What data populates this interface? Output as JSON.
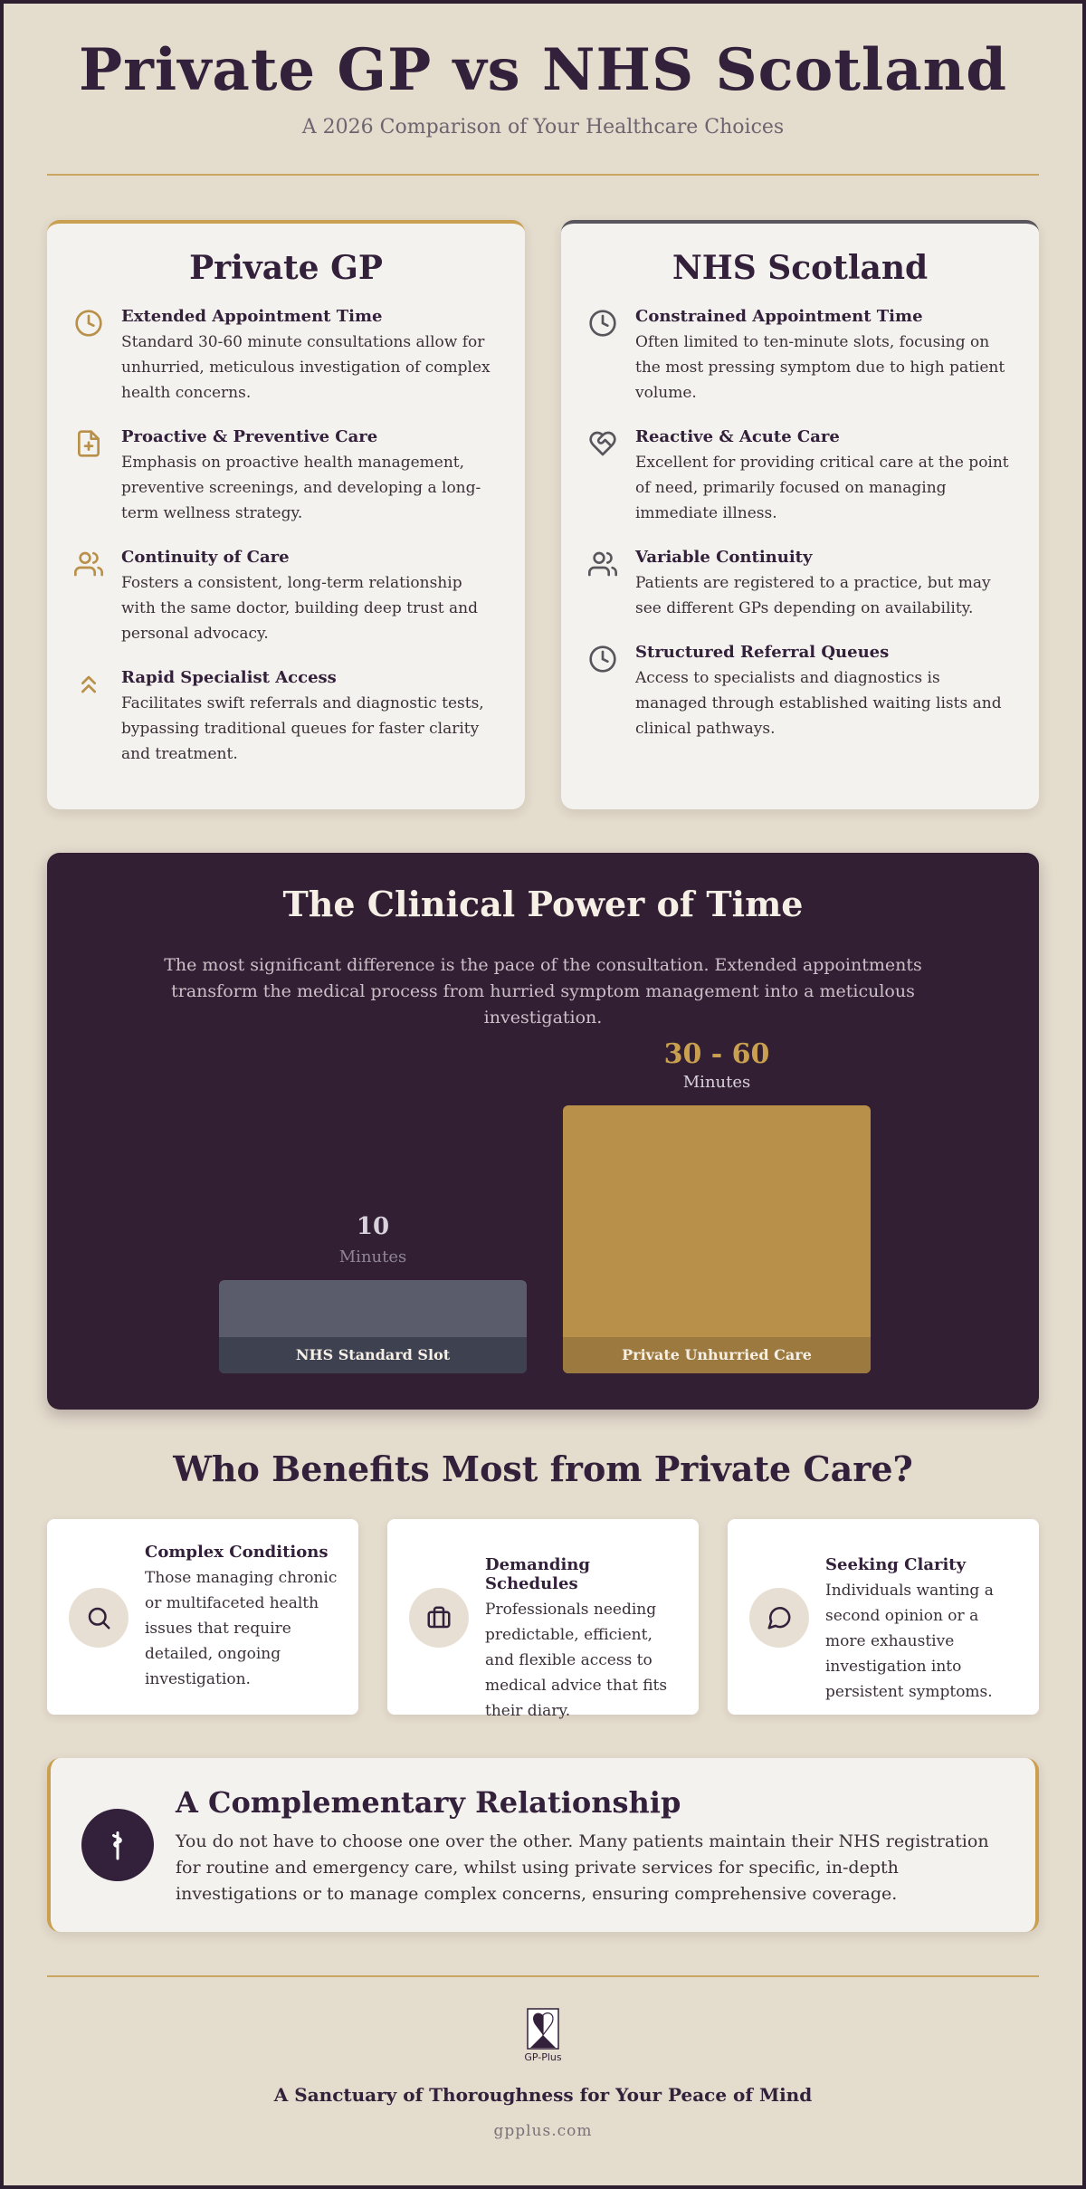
{
  "header": {
    "title": "Private GP vs NHS Scotland",
    "subtitle": "A 2026 Comparison of Your Healthcare Choices"
  },
  "private_card": {
    "title": "Private GP",
    "accent": "#c9a04f",
    "features": [
      {
        "icon": "clock-icon",
        "title": "Extended Appointment Time",
        "text": "Standard 30-60 minute consultations allow for unhurried, meticulous investigation of complex health concerns."
      },
      {
        "icon": "file-plus-icon",
        "title": "Proactive & Preventive Care",
        "text": "Emphasis on proactive health management, preventive screenings, and developing a long-term wellness strategy."
      },
      {
        "icon": "users-icon",
        "title": "Continuity of Care",
        "text": "Fosters a consistent, long-term relationship with the same doctor, building deep trust and personal advocacy."
      },
      {
        "icon": "chevrons-up-icon",
        "title": "Rapid Specialist Access",
        "text": "Facilitates swift referrals and diagnostic tests, bypassing traditional queues for faster clarity and treatment."
      }
    ]
  },
  "nhs_card": {
    "title": "NHS Scotland",
    "accent": "#58565c",
    "features": [
      {
        "icon": "clock-icon",
        "title": "Constrained Appointment Time",
        "text": "Often limited to ten-minute slots, focusing on the most pressing symptom due to high patient volume."
      },
      {
        "icon": "heart-handshake-icon",
        "title": "Reactive & Acute Care",
        "text": "Excellent for providing critical care at the point of need, primarily focused on managing immediate illness."
      },
      {
        "icon": "users-icon",
        "title": "Variable Continuity",
        "text": "Patients are registered to a practice, but may see different GPs depending on availability."
      },
      {
        "icon": "clock-icon",
        "title": "Structured Referral Queues",
        "text": "Access to specialists and diagnostics is managed through established waiting lists and clinical pathways."
      }
    ]
  },
  "power": {
    "title": "The Clinical Power of Time",
    "description": "The most significant difference is the pace of the consultation. Extended appointments transform the medical process from hurried symptom management into a meticulous investigation."
  },
  "chart_data": {
    "type": "bar",
    "categories": [
      "NHS Standard Slot",
      "Private Unhurried Care"
    ],
    "values": [
      10,
      60
    ],
    "value_labels": [
      "10",
      "30 - 60"
    ],
    "unit_label": "Minutes",
    "range_low": [
      10,
      30
    ],
    "colors": [
      "#5a5b6b",
      "#b89049"
    ],
    "ylim": [
      0,
      60
    ]
  },
  "benefits": {
    "title": "Who Benefits Most from Private Care?",
    "items": [
      {
        "icon": "search-icon",
        "title": "Complex Conditions",
        "text": "Those managing chronic or multifaceted health issues that require detailed, ongoing investigation."
      },
      {
        "icon": "briefcase-icon",
        "title": "Demanding Schedules",
        "text": "Professionals needing predictable, efficient, and flexible access to medical advice that fits their diary."
      },
      {
        "icon": "message-circle-icon",
        "title": "Seeking Clarity",
        "text": "Individuals wanting a second opinion or a more exhaustive investigation into persistent symptoms."
      }
    ]
  },
  "complementary": {
    "icon": "caduceus-icon",
    "title": "A Complementary Relationship",
    "text": "You do not have to choose one over the other. Many patients maintain their NHS registration for routine and emergency care, whilst using private services for specific, in-depth investigations or to manage complex concerns, ensuring comprehensive coverage."
  },
  "footer": {
    "logo_text": "GP-Plus",
    "tagline": "A Sanctuary of Thoroughness for Your Peace of Mind",
    "site": "gpplus.com"
  }
}
